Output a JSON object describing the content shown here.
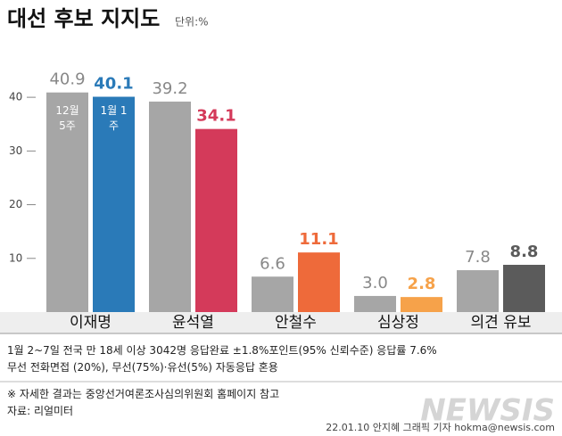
{
  "chart_data": {
    "type": "bar",
    "title": "대선 후보 지지도",
    "subtitle": "단위:%",
    "categories": [
      "이재명",
      "윤석열",
      "안철수",
      "심상정",
      "의견 유보"
    ],
    "series": [
      {
        "name": "12월 5주",
        "color": "#a6a6a6",
        "values": [
          40.9,
          39.2,
          6.6,
          3.0,
          7.8
        ],
        "value_labels": [
          "40.9",
          "39.2",
          "6.6",
          "3.0",
          "7.8"
        ]
      },
      {
        "name": "1월 1주",
        "colors": [
          "#2a7ab8",
          "#d43a5a",
          "#ee6a3a",
          "#f6a24a",
          "#5b5b5b"
        ],
        "values": [
          40.1,
          34.1,
          11.1,
          2.8,
          8.8
        ]
      }
    ],
    "ylim": [
      0,
      45
    ],
    "yticks": [
      10,
      20,
      30,
      40
    ],
    "notes": [
      "1월 2~7일 전국 만 18세 이상 3042명 응답완료 ±1.8%포인트(95% 신뢰수준) 응답률 7.6%",
      "무선 전화면접 (20%), 무선(75%)·유선(5%) 자동응답 혼용",
      "※ 자세한 결과는 중앙선거여론조사심의위원회 홈페이지 참고",
      "자료: 리얼미터"
    ],
    "credit": "22.01.10 안지혜 그래픽 기자 hokma@newsis.com",
    "brand": "NEWSIS"
  }
}
